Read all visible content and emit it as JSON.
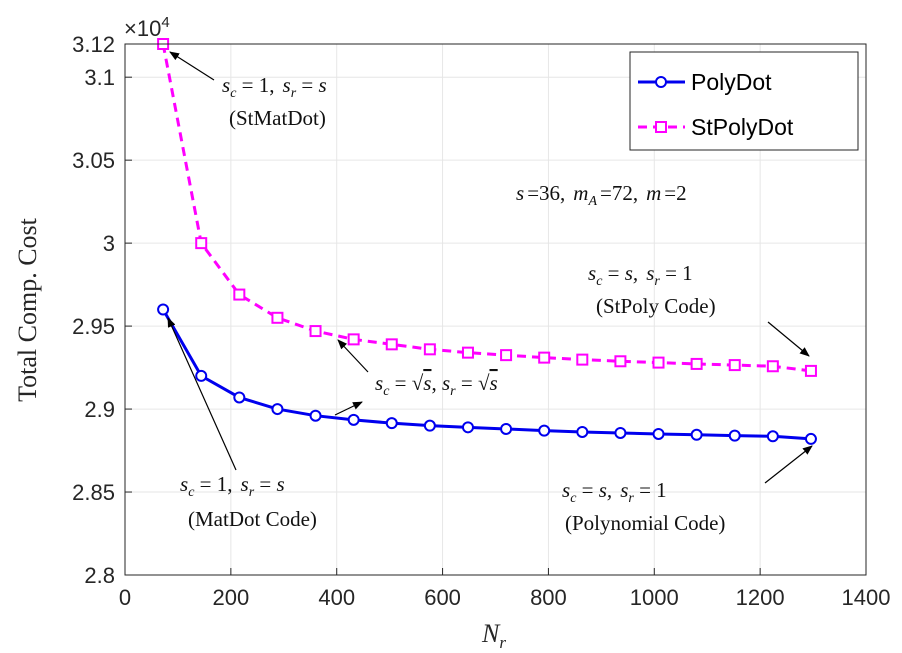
{
  "chart_data": {
    "type": "line",
    "xlabel_main": "N",
    "xlabel_sub": "r",
    "ylabel": "Total Comp. Cost",
    "exponent_base": "×10",
    "exponent_power": "4",
    "xlim": [
      0,
      1400
    ],
    "ylim": [
      28000,
      31200
    ],
    "x_ticks": [
      0,
      200,
      400,
      600,
      800,
      1000,
      1200,
      1400
    ],
    "x_tick_labels": [
      "0",
      "200",
      "400",
      "600",
      "800",
      "1000",
      "1200",
      "1400"
    ],
    "y_ticks": [
      28000,
      28500,
      29000,
      29500,
      30000,
      30500,
      31000,
      31200
    ],
    "y_tick_labels": [
      "2.8",
      "2.85",
      "2.9",
      "2.95",
      "3",
      "3.05",
      "3.1",
      "3.12"
    ],
    "grid": true,
    "legend_position": "top-right",
    "series": [
      {
        "name": "PolyDot",
        "color": "#0000ee",
        "style": "solid",
        "marker": "circle",
        "x": [
          72,
          144,
          216,
          288,
          360,
          432,
          504,
          576,
          648,
          720,
          792,
          864,
          936,
          1008,
          1080,
          1152,
          1224,
          1296
        ],
        "y": [
          29600,
          29200,
          29070,
          29000,
          28960,
          28935,
          28915,
          28900,
          28890,
          28880,
          28870,
          28862,
          28856,
          28850,
          28845,
          28840,
          28836,
          28820
        ]
      },
      {
        "name": "StPolyDot",
        "color": "#ff00ff",
        "style": "dashed",
        "marker": "square",
        "x": [
          72,
          144,
          216,
          288,
          360,
          432,
          504,
          576,
          648,
          720,
          792,
          864,
          936,
          1008,
          1080,
          1152,
          1224,
          1296
        ],
        "y": [
          31200,
          30000,
          29690,
          29550,
          29470,
          29420,
          29390,
          29360,
          29340,
          29325,
          29310,
          29298,
          29288,
          29280,
          29272,
          29265,
          29258,
          29230
        ]
      }
    ],
    "annotations": {
      "params": {
        "s": "=36,",
        "mA": "=72,",
        "m": "=2"
      },
      "stmatdot": {
        "mid": "1,",
        "end": "s",
        "line2": "(StMatDot)"
      },
      "stpoly": {
        "mid": "s,",
        "end": "1",
        "line2": "(StPoly Code)"
      },
      "middle": {
        "eq": "="
      },
      "matdot": {
        "mid": "1,",
        "end": "s",
        "line2": "(MatDot Code)"
      },
      "poly": {
        "mid": "s,",
        "end": "1",
        "line2": "(Polynomial Code)"
      }
    }
  }
}
